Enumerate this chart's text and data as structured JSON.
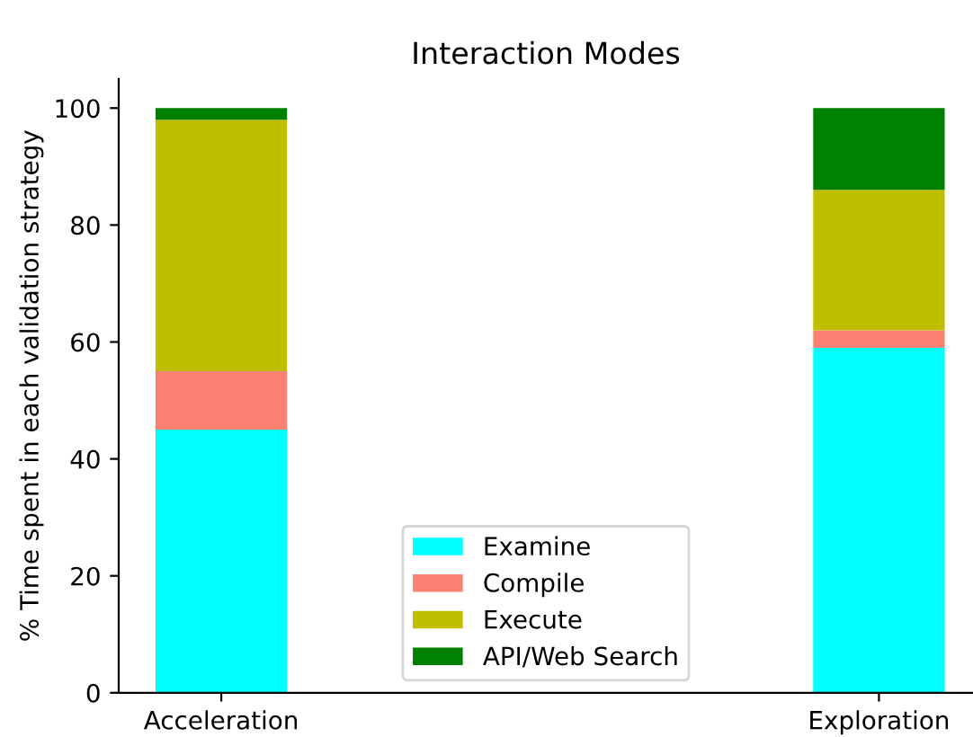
{
  "chart_data": {
    "type": "bar",
    "title": "Interaction Modes",
    "ylabel": "% Time spent in each validation strategy",
    "categories": [
      "Acceleration",
      "Exploration"
    ],
    "stacked": true,
    "series": [
      {
        "name": "Examine",
        "color": "#00ffff",
        "values": [
          45,
          59
        ]
      },
      {
        "name": "Compile",
        "color": "#fa8072",
        "values": [
          10,
          3
        ]
      },
      {
        "name": "Execute",
        "color": "#bfbf00",
        "values": [
          43,
          24
        ]
      },
      {
        "name": "API/Web Search",
        "color": "#008000",
        "values": [
          2,
          14
        ]
      }
    ],
    "ylim": [
      0,
      105
    ],
    "yticks": [
      0,
      20,
      40,
      60,
      80,
      100
    ],
    "grid": false,
    "legend": "bottom"
  }
}
